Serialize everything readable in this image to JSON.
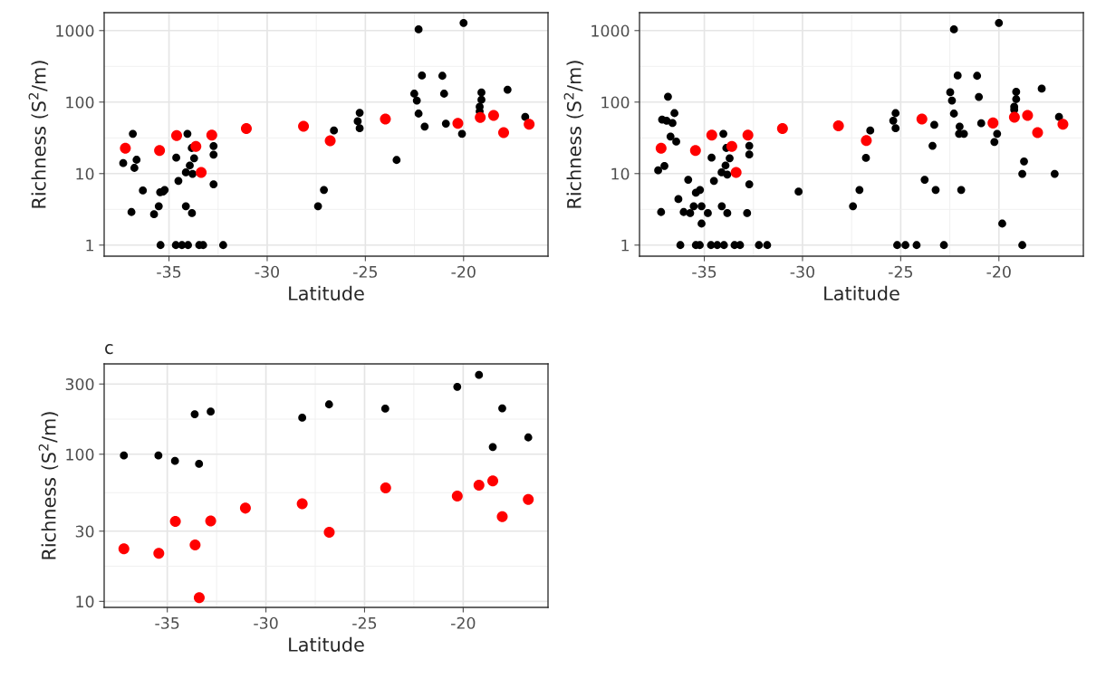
{
  "chart_data": [
    {
      "type": "scatter",
      "xlabel": "Latitude",
      "ylabel": "Richness (S$^{2}$/m)",
      "log": "y",
      "grid": true,
      "marker": "circle",
      "xlim": [
        -38.3,
        -15.7
      ],
      "xticks": [
        -35,
        -30,
        -25,
        -20
      ],
      "ylim": [
        0.7,
        1780
      ],
      "yticks": [
        1,
        10,
        100,
        1000
      ],
      "series": [
        {
          "color": "#000000",
          "x": [
            -37.33,
            -36.84,
            -36.65,
            -36.76,
            -36.33,
            -36.91,
            -35.76,
            -35.52,
            -35.45,
            -35.3,
            -35.22,
            -35.43,
            -34.63,
            -34.52,
            -34.65,
            -34.34,
            -34.03,
            -34.06,
            -34.14,
            -33.94,
            -33.8,
            -33.72,
            -33.84,
            -34.14,
            -33.83,
            -33.46,
            -33.26,
            -32.73,
            -32.73,
            -32.73,
            -32.24,
            -27.11,
            -27.41,
            -26.6,
            -25.39,
            -25.29,
            -25.29,
            -23.41,
            -22.29,
            -20.0,
            -22.12,
            -21.08,
            -22.51,
            -22.38,
            -20.99,
            -22.29,
            -21.98,
            -20.9,
            -20.08,
            -19.09,
            -19.09,
            -19.18,
            -19.18,
            -17.76,
            -16.86
          ],
          "values": [
            14,
            36,
            15.6,
            12,
            5.8,
            2.9,
            2.7,
            3.5,
            5.5,
            5.6,
            5.9,
            1,
            16.7,
            7.9,
            1,
            1,
            1,
            36,
            10.4,
            13,
            9.9,
            16.4,
            22.8,
            3.5,
            2.8,
            1,
            1,
            24.3,
            18.4,
            7.1,
            1,
            5.9,
            3.5,
            40,
            54,
            71,
            43,
            15.5,
            1040,
            1280,
            235,
            233,
            131,
            105,
            131,
            69,
            45.5,
            50,
            36,
            136,
            108,
            86,
            74,
            149,
            62
          ]
        },
        {
          "color": "#ff0000",
          "x": [
            -37.22,
            -35.48,
            -34.61,
            -33.63,
            -33.36,
            -32.82,
            -31.06,
            -28.15,
            -26.79,
            -23.98,
            -20.29,
            -19.15,
            -18.47,
            -17.96,
            -16.66
          ],
          "values": [
            22.6,
            21,
            34,
            24,
            10.4,
            34.5,
            42.6,
            46,
            28.8,
            58,
            50.5,
            61,
            65,
            37.5,
            49
          ]
        }
      ]
    },
    {
      "type": "scatter",
      "xlabel": "Latitude",
      "ylabel": "Richness (S$^{2}$/m)",
      "log": "y",
      "grid": true,
      "marker": "circle",
      "xlim": [
        -38.3,
        -15.7
      ],
      "xticks": [
        -35,
        -30,
        -25,
        -20
      ],
      "ylim": [
        0.7,
        1780
      ],
      "yticks": [
        1,
        10,
        100,
        1000
      ],
      "series": [
        {
          "color": "#000000",
          "x": [
            -37.35,
            -37.03,
            -37.2,
            -36.85,
            -37.15,
            -36.92,
            -36.62,
            -36.52,
            -36.72,
            -36.43,
            -35.82,
            -36.32,
            -36.05,
            -35.72,
            -35.54,
            -35.43,
            -35.22,
            -35.14,
            -35.14,
            -34.82,
            -36.22,
            -35.43,
            -35.23,
            -34.66,
            -34.34,
            -34.0,
            -33.46,
            -33.18,
            -34.63,
            -34.51,
            -34.03,
            -33.88,
            -33.71,
            -33.92,
            -34.12,
            -33.83,
            -34.11,
            -33.83,
            -32.71,
            -32.71,
            -32.71,
            -32.82,
            -32.22,
            -31.8,
            -30.2,
            -27.43,
            -27.1,
            -26.77,
            -26.55,
            -25.38,
            -25.26,
            -25.26,
            -25.18,
            -24.76,
            -24.19,
            -23.29,
            -23.38,
            -23.78,
            -23.22,
            -22.8,
            -22.29,
            -22.48,
            -22.39,
            -22.29,
            -22.1,
            -22.0,
            -22.03,
            -21.78,
            -21.92,
            -21.11,
            -21.02,
            -20.9,
            -20.0,
            -20.09,
            -20.23,
            -19.83,
            -19.12,
            -19.12,
            -19.22,
            -19.22,
            -18.72,
            -18.81,
            -18.81,
            -17.82,
            -16.94,
            -17.16
          ],
          "values": [
            11.1,
            12.8,
            2.9,
            119,
            57,
            55,
            51,
            70,
            33,
            28,
            8.2,
            4.4,
            2.9,
            2.8,
            3.5,
            5.4,
            5.9,
            3.5,
            2.0,
            2.8,
            1,
            1,
            1,
            1,
            1,
            1,
            1,
            1,
            16.7,
            7.9,
            36,
            22.8,
            16.4,
            13,
            10.4,
            9.7,
            3.5,
            2.8,
            24.5,
            18.5,
            7.1,
            2.8,
            1,
            1,
            5.6,
            3.5,
            5.9,
            16.6,
            40,
            55,
            70,
            43,
            1,
            1,
            1,
            48,
            24.5,
            8.2,
            5.9,
            1,
            1040,
            137,
            105,
            69,
            235,
            45.5,
            36,
            36,
            5.9,
            233,
            118,
            50.5,
            1280,
            36,
            27.7,
            2.0,
            139,
            110,
            86,
            78,
            14.8,
            9.9,
            1,
            154,
            62,
            9.9
          ]
        },
        {
          "color": "#ff0000",
          "x": [
            -37.2,
            -35.45,
            -34.62,
            -33.6,
            -33.38,
            -32.78,
            -31.02,
            -28.17,
            -26.75,
            -23.92,
            -20.3,
            -19.21,
            -18.54,
            -18.03,
            -16.74
          ],
          "values": [
            22.6,
            21,
            34.5,
            24,
            10.4,
            34.5,
            42.6,
            46.5,
            29,
            58,
            51,
            61.5,
            65,
            37.5,
            49
          ]
        }
      ]
    },
    {
      "type": "scatter",
      "title": "c",
      "xlabel": "Latitude",
      "ylabel": "Richness (S$^{2}$/m)",
      "log": "y",
      "grid": true,
      "marker": "circle",
      "xlim": [
        -38.2,
        -15.7
      ],
      "xticks": [
        -35,
        -30,
        -25,
        -20
      ],
      "ylim": [
        9.1,
        411
      ],
      "yticks": [
        10,
        30,
        100,
        300
      ],
      "series": [
        {
          "color": "#000000",
          "x": [
            -37.2,
            -35.45,
            -34.61,
            -33.39,
            -33.61,
            -32.8,
            -28.16,
            -26.8,
            -23.95,
            -20.3,
            -19.2,
            -18.02,
            -18.5,
            -16.7
          ],
          "values": [
            98,
            98,
            90,
            86,
            187,
            195,
            177,
            218,
            204,
            287,
            346,
            205,
            112,
            130
          ]
        },
        {
          "color": "#ff0000",
          "x": [
            -37.2,
            -35.43,
            -34.59,
            -33.59,
            -33.38,
            -32.8,
            -31.04,
            -28.16,
            -26.79,
            -23.93,
            -20.3,
            -19.2,
            -18.5,
            -18.02,
            -16.7
          ],
          "values": [
            22.8,
            21.2,
            35,
            24.2,
            10.6,
            35.2,
            43,
            46,
            29.5,
            59,
            52,
            61.6,
            65.8,
            37.7,
            49.3
          ]
        }
      ]
    }
  ]
}
